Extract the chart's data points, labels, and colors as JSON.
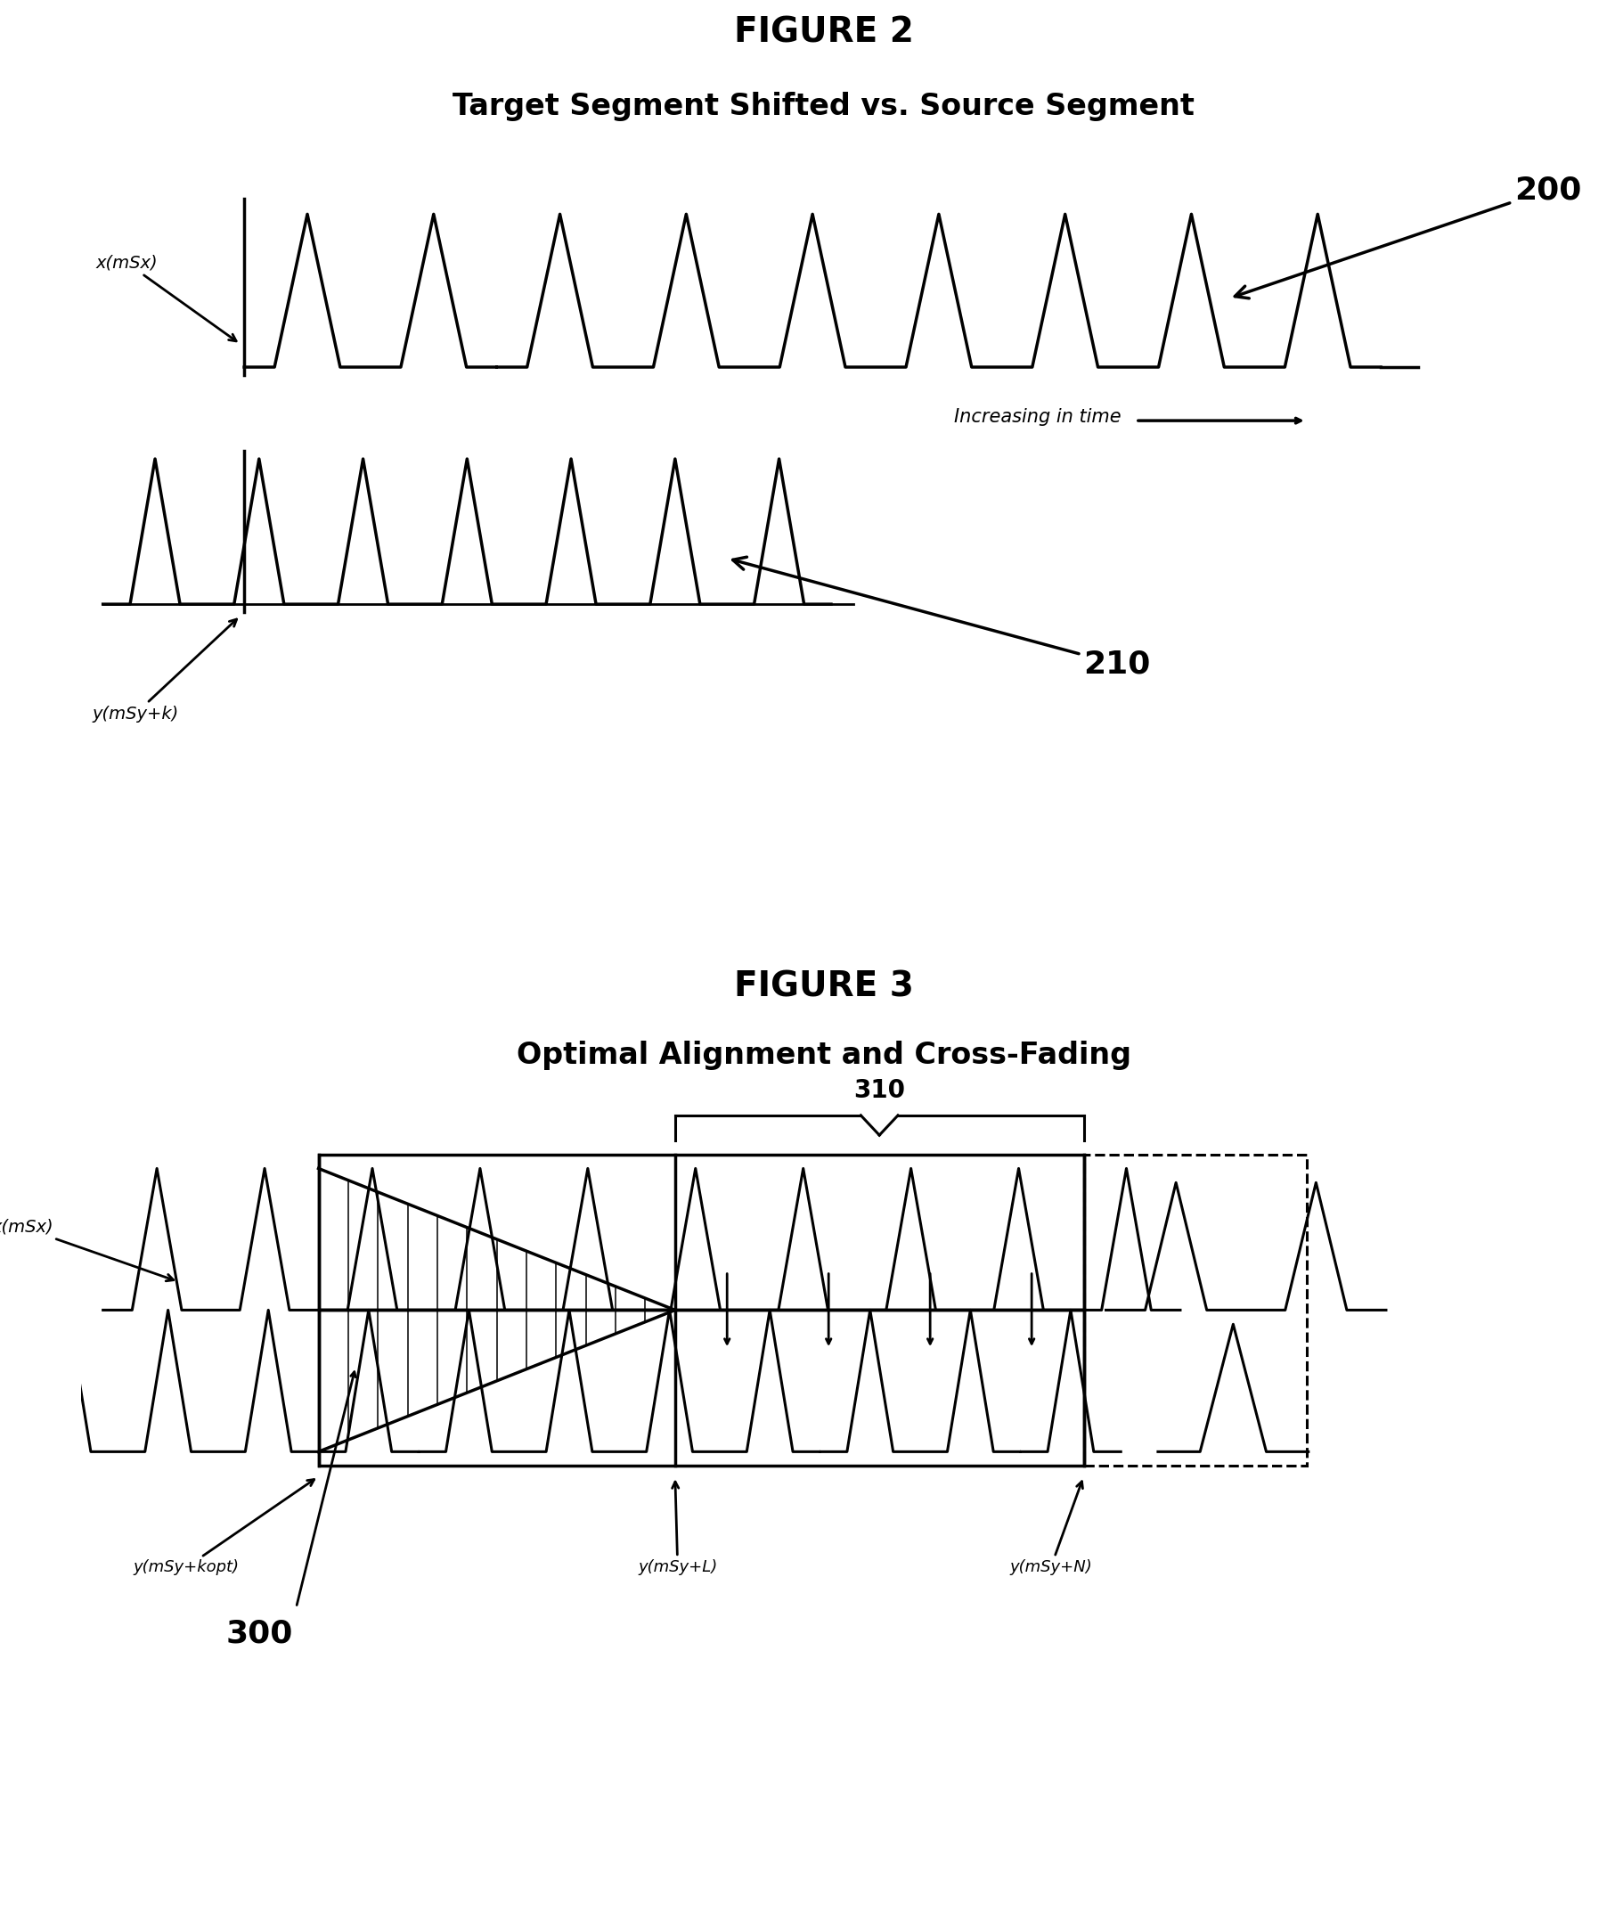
{
  "fig2_title": "FIGURE 2",
  "fig2_subtitle": "Target Segment Shifted vs. Source Segment",
  "fig3_title": "FIGURE 3",
  "fig3_subtitle": "Optimal Alignment and Cross-Fading",
  "bg_color": "#ffffff",
  "line_color": "#000000"
}
